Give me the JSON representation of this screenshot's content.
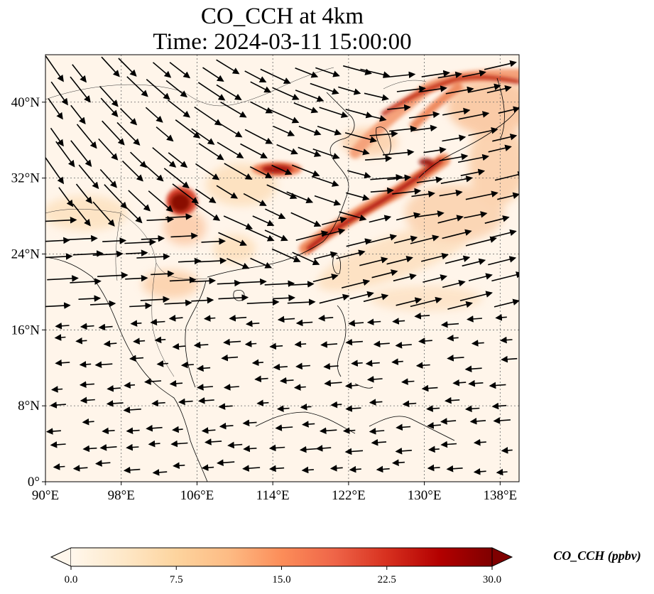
{
  "title": {
    "line1": "CO_CCH at 4km",
    "line2": "Time: 2024-03-11 15:00:00"
  },
  "map": {
    "projection": "PlateCarree",
    "lon_range": [
      90,
      140
    ],
    "lat_range": [
      0,
      45
    ],
    "gridlines": "dotted",
    "x_ticks": [
      {
        "value": 90,
        "label": "90°E"
      },
      {
        "value": 98,
        "label": "98°E"
      },
      {
        "value": 106,
        "label": "106°E"
      },
      {
        "value": 114,
        "label": "114°E"
      },
      {
        "value": 122,
        "label": "122°E"
      },
      {
        "value": 130,
        "label": "130°E"
      },
      {
        "value": 138,
        "label": "138°E"
      }
    ],
    "y_ticks": [
      {
        "value": 0,
        "label": "0°"
      },
      {
        "value": 8,
        "label": "8°N"
      },
      {
        "value": 16,
        "label": "16°N"
      },
      {
        "value": 24,
        "label": "24°N"
      },
      {
        "value": 32,
        "label": "32°N"
      },
      {
        "value": 40,
        "label": "40°N"
      }
    ],
    "field_colormap": "OrRd",
    "wind_vectors": "black arrows"
  },
  "colorbar": {
    "label": "CO_CCH (ppbv)",
    "min": 0.0,
    "max": 30.0,
    "extend": "both",
    "ticks": [
      "0.0",
      "7.5",
      "15.0",
      "22.5",
      "30.0"
    ],
    "colors": [
      "#fff7ec",
      "#fee8c8",
      "#fdd49e",
      "#fdbb84",
      "#fc8d59",
      "#ef6548",
      "#d7301f",
      "#b30000",
      "#7f0000"
    ]
  }
}
